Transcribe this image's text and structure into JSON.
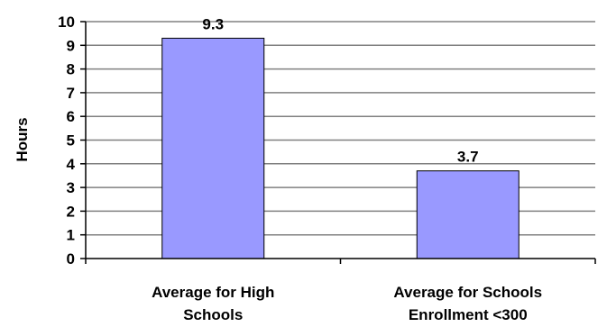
{
  "chart_data": {
    "type": "bar",
    "title": "",
    "xlabel": "",
    "ylabel": "Hours",
    "ylim": [
      0,
      10
    ],
    "yticks": [
      0,
      1,
      2,
      3,
      4,
      5,
      6,
      7,
      8,
      9,
      10
    ],
    "grid": true,
    "legend": "none",
    "categories": [
      [
        "Average for High",
        "Schools"
      ],
      [
        "Average for Schools",
        "Enrollment <300"
      ]
    ],
    "values": [
      9.3,
      3.7
    ],
    "data_labels": [
      "9.3",
      "3.7"
    ],
    "bar_color": "#9999ff",
    "bar_outline_color": "#000000",
    "grid_color": "#808080"
  }
}
